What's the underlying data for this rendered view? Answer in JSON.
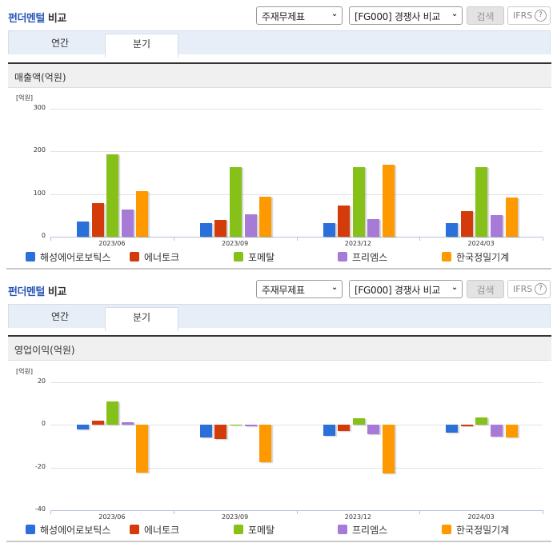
{
  "series_colors": {
    "haesung": "#2b6fdb",
    "enertoke": "#d33b0b",
    "formetal": "#86c11a",
    "freems": "#a77ad8",
    "hankook": "#ff9900"
  },
  "panels": [
    {
      "title_blue": "펀더멘털",
      "title_dark": "비교",
      "statement_select": "주재무제표",
      "compare_select": "[FG000] 경쟁사 비교",
      "search_label": "검색",
      "ifrs_label": "IFRS",
      "help_label": "?",
      "tabs": [
        {
          "label": "연간"
        },
        {
          "label": "분기"
        }
      ],
      "subheading": "매출액(억원)",
      "unit": "[억원]",
      "yticks": [
        "300",
        "200",
        "100",
        "0"
      ],
      "xlabels": [
        "2023/06",
        "2023/09",
        "2023/12",
        "2024/03"
      ]
    },
    {
      "title_blue": "펀더멘털",
      "title_dark": "비교",
      "statement_select": "주재무제표",
      "compare_select": "[FG000] 경쟁사 비교",
      "search_label": "검색",
      "ifrs_label": "IFRS",
      "help_label": "?",
      "tabs": [
        {
          "label": "연간"
        },
        {
          "label": "분기"
        }
      ],
      "subheading": "영업이익(억원)",
      "unit": "[억원]",
      "yticks": [
        "20",
        "0",
        "-20",
        "-40"
      ],
      "xlabels": [
        "2023/06",
        "2023/09",
        "2023/12",
        "2024/03"
      ]
    }
  ],
  "legend": [
    "해성에어로보틱스",
    "에너토크",
    "포메탈",
    "프리엠스",
    "한국정밀기계"
  ],
  "chart_data": [
    {
      "type": "bar",
      "title": "매출액(억원)",
      "xlabel": "",
      "ylabel": "[억원]",
      "ylim": [
        0,
        300
      ],
      "grid": true,
      "legend_position": "bottom",
      "categories": [
        "2023/06",
        "2023/09",
        "2023/12",
        "2024/03"
      ],
      "series": [
        {
          "name": "해성에어로보틱스",
          "color": "#2b6fdb",
          "values": [
            36,
            31,
            31,
            32
          ]
        },
        {
          "name": "에너토크",
          "color": "#d33b0b",
          "values": [
            79,
            40,
            73,
            60
          ]
        },
        {
          "name": "포메탈",
          "color": "#86c11a",
          "values": [
            193,
            164,
            164,
            163
          ]
        },
        {
          "name": "프리엠스",
          "color": "#a77ad8",
          "values": [
            64,
            53,
            41,
            51
          ]
        },
        {
          "name": "한국정밀기계",
          "color": "#ff9900",
          "values": [
            107,
            93,
            169,
            92
          ]
        }
      ]
    },
    {
      "type": "bar",
      "title": "영업이익(억원)",
      "xlabel": "",
      "ylabel": "[억원]",
      "ylim": [
        -40,
        20
      ],
      "grid": true,
      "legend_position": "bottom",
      "categories": [
        "2023/06",
        "2023/09",
        "2023/12",
        "2024/03"
      ],
      "series": [
        {
          "name": "해성에어로보틱스",
          "color": "#2b6fdb",
          "values": [
            -2.3,
            -6.0,
            -5.0,
            -3.5
          ]
        },
        {
          "name": "에너토크",
          "color": "#d33b0b",
          "values": [
            2.1,
            -6.6,
            -3.0,
            -0.8
          ]
        },
        {
          "name": "포메탈",
          "color": "#86c11a",
          "values": [
            11.0,
            0.2,
            3.3,
            3.5
          ]
        },
        {
          "name": "프리엠스",
          "color": "#a77ad8",
          "values": [
            1.3,
            -0.5,
            -4.2,
            -5.5
          ]
        },
        {
          "name": "한국정밀기계",
          "color": "#ff9900",
          "values": [
            -22.4,
            -17.6,
            -22.8,
            -5.7
          ]
        }
      ]
    }
  ]
}
